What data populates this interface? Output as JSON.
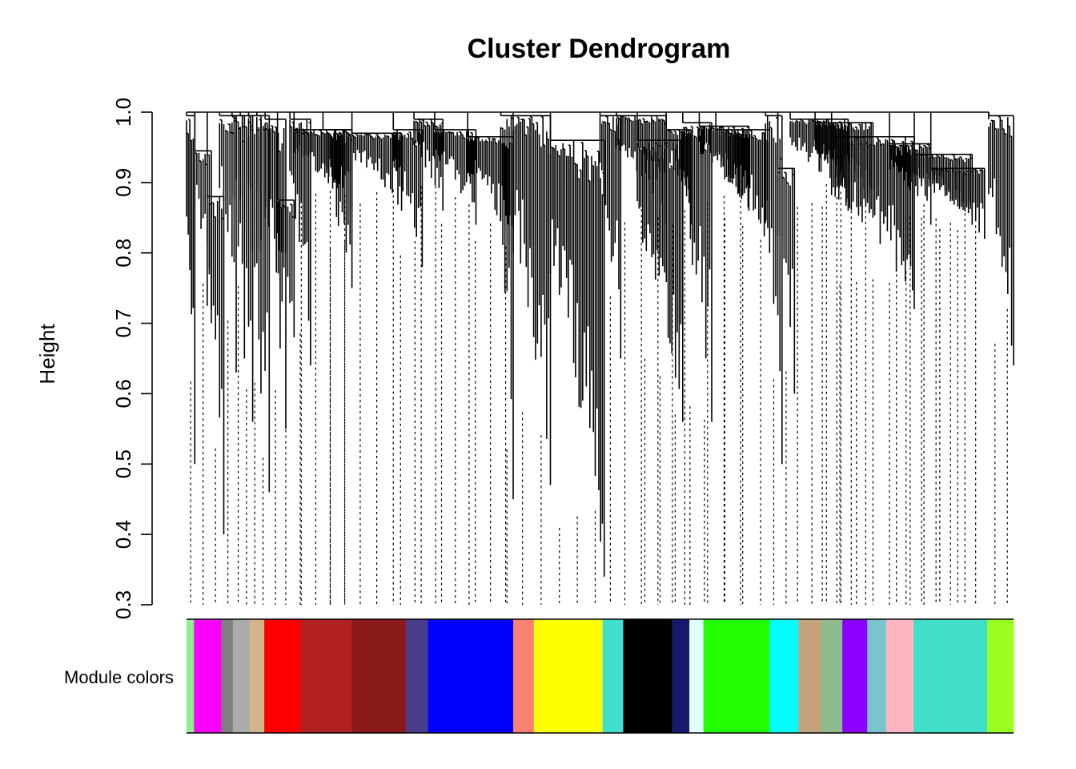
{
  "chart_data": {
    "type": "dendrogram",
    "title": "Cluster Dendrogram",
    "ylabel": "Height",
    "ylim": [
      0.3,
      1.0
    ],
    "yticks": [
      "0.3",
      "0.4",
      "0.5",
      "0.6",
      "0.7",
      "0.8",
      "0.9",
      "1.0"
    ],
    "color_bar_label": "Module colors",
    "branches": [
      {
        "a": 0.0,
        "b": 0.01,
        "top": 0.995,
        "min": 0.5
      },
      {
        "a": 0.01,
        "b": 0.03,
        "top": 0.945,
        "min": 0.72
      },
      {
        "a": 0.025,
        "b": 0.045,
        "top": 0.88,
        "min": 0.4
      },
      {
        "a": 0.04,
        "b": 0.06,
        "top": 0.995,
        "min": 0.63
      },
      {
        "a": 0.055,
        "b": 0.07,
        "top": 0.995,
        "min": 0.65
      },
      {
        "a": 0.065,
        "b": 0.08,
        "top": 0.995,
        "min": 0.56
      },
      {
        "a": 0.075,
        "b": 0.09,
        "top": 0.995,
        "min": 0.6
      },
      {
        "a": 0.085,
        "b": 0.1,
        "top": 0.995,
        "min": 0.46
      },
      {
        "a": 0.095,
        "b": 0.12,
        "top": 0.99,
        "min": 0.55
      },
      {
        "a": 0.11,
        "b": 0.13,
        "top": 0.875,
        "min": 0.68
      },
      {
        "a": 0.125,
        "b": 0.15,
        "top": 0.99,
        "min": 0.64
      },
      {
        "a": 0.13,
        "b": 0.2,
        "top": 0.975,
        "min": 0.86
      },
      {
        "a": 0.165,
        "b": 0.2,
        "top": 0.975,
        "min": 0.75
      },
      {
        "a": 0.2,
        "b": 0.26,
        "top": 0.97,
        "min": 0.86
      },
      {
        "a": 0.25,
        "b": 0.285,
        "top": 0.975,
        "min": 0.78
      },
      {
        "a": 0.275,
        "b": 0.31,
        "top": 0.99,
        "min": 0.86
      },
      {
        "a": 0.3,
        "b": 0.35,
        "top": 0.975,
        "min": 0.84
      },
      {
        "a": 0.34,
        "b": 0.395,
        "top": 0.965,
        "min": 0.8
      },
      {
        "a": 0.38,
        "b": 0.395,
        "top": 0.995,
        "min": 0.45
      },
      {
        "a": 0.395,
        "b": 0.44,
        "top": 0.995,
        "min": 0.47
      },
      {
        "a": 0.44,
        "b": 0.505,
        "top": 0.96,
        "min": 0.34
      },
      {
        "a": 0.5,
        "b": 0.525,
        "top": 0.995,
        "min": 0.65
      },
      {
        "a": 0.52,
        "b": 0.58,
        "top": 0.995,
        "min": 0.84
      },
      {
        "a": 0.545,
        "b": 0.6,
        "top": 0.96,
        "min": 0.56
      },
      {
        "a": 0.58,
        "b": 0.61,
        "top": 0.975,
        "min": 0.84
      },
      {
        "a": 0.6,
        "b": 0.635,
        "top": 0.985,
        "min": 0.56
      },
      {
        "a": 0.62,
        "b": 0.68,
        "top": 0.98,
        "min": 0.86
      },
      {
        "a": 0.64,
        "b": 0.705,
        "top": 0.975,
        "min": 0.8
      },
      {
        "a": 0.7,
        "b": 0.72,
        "top": 0.995,
        "min": 0.5
      },
      {
        "a": 0.715,
        "b": 0.735,
        "top": 0.92,
        "min": 0.6
      },
      {
        "a": 0.73,
        "b": 0.8,
        "top": 0.99,
        "min": 0.86
      },
      {
        "a": 0.76,
        "b": 0.83,
        "top": 0.985,
        "min": 0.85
      },
      {
        "a": 0.78,
        "b": 0.88,
        "top": 0.965,
        "min": 0.72
      },
      {
        "a": 0.85,
        "b": 0.9,
        "top": 0.955,
        "min": 0.84
      },
      {
        "a": 0.88,
        "b": 0.95,
        "top": 0.94,
        "min": 0.84
      },
      {
        "a": 0.9,
        "b": 0.965,
        "top": 0.92,
        "min": 0.82
      },
      {
        "a": 0.97,
        "b": 1.0,
        "top": 0.995,
        "min": 0.64
      }
    ],
    "module_colors": [
      {
        "color": "#90EE90",
        "start": 0.0,
        "end": 0.009
      },
      {
        "color": "#FF00FF",
        "start": 0.009,
        "end": 0.042
      },
      {
        "color": "#7F7F7F",
        "start": 0.042,
        "end": 0.056
      },
      {
        "color": "#AAAAAA",
        "start": 0.056,
        "end": 0.076
      },
      {
        "color": "#D2B48C",
        "start": 0.076,
        "end": 0.094
      },
      {
        "color": "#FF0000",
        "start": 0.094,
        "end": 0.138
      },
      {
        "color": "#B22222",
        "start": 0.138,
        "end": 0.2
      },
      {
        "color": "#8B1A1A",
        "start": 0.2,
        "end": 0.265
      },
      {
        "color": "#483D8B",
        "start": 0.265,
        "end": 0.292
      },
      {
        "color": "#0000FF",
        "start": 0.292,
        "end": 0.395
      },
      {
        "color": "#FA8072",
        "start": 0.395,
        "end": 0.42
      },
      {
        "color": "#FFFF00",
        "start": 0.42,
        "end": 0.503
      },
      {
        "color": "#40E0D0",
        "start": 0.503,
        "end": 0.528
      },
      {
        "color": "#000000",
        "start": 0.528,
        "end": 0.587
      },
      {
        "color": "#191970",
        "start": 0.587,
        "end": 0.608
      },
      {
        "color": "#E0FFFF",
        "start": 0.608,
        "end": 0.625
      },
      {
        "color": "#22FF00",
        "start": 0.625,
        "end": 0.705
      },
      {
        "color": "#00FFFF",
        "start": 0.705,
        "end": 0.74
      },
      {
        "color": "#C4A27A",
        "start": 0.74,
        "end": 0.767
      },
      {
        "color": "#8FBC8F",
        "start": 0.767,
        "end": 0.793
      },
      {
        "color": "#8B00FF",
        "start": 0.793,
        "end": 0.823
      },
      {
        "color": "#7AC5CD",
        "start": 0.823,
        "end": 0.846
      },
      {
        "color": "#FFB6C1",
        "start": 0.846,
        "end": 0.879
      },
      {
        "color": "#40E0C8",
        "start": 0.879,
        "end": 0.968
      },
      {
        "color": "#9BFF22",
        "start": 0.968,
        "end": 1.0
      }
    ]
  }
}
